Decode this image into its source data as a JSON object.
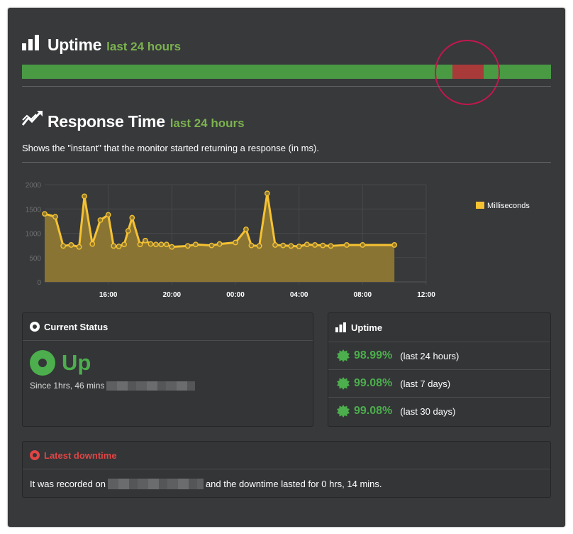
{
  "uptime_section": {
    "title": "Uptime",
    "period": "last 24 hours"
  },
  "response_section": {
    "title": "Response Time",
    "period": "last 24 hours",
    "description": "Shows the \"instant\" that the monitor started returning a response (in ms)."
  },
  "chart_data": {
    "type": "area",
    "series": [
      {
        "name": "Milliseconds",
        "color": "#f5c232",
        "x": [
          "12:00",
          "12:40",
          "13:10",
          "13:40",
          "14:10",
          "14:30",
          "15:00",
          "15:30",
          "16:00",
          "16:20",
          "16:40",
          "17:00",
          "17:15",
          "17:30",
          "18:00",
          "18:20",
          "18:40",
          "19:00",
          "19:20",
          "19:40",
          "20:00",
          "21:00",
          "21:30",
          "22:30",
          "23:00",
          "24:00",
          "24:40",
          "25:00",
          "25:30",
          "26:00",
          "26:30",
          "27:00",
          "27:30",
          "28:00",
          "28:30",
          "29:00",
          "29:30",
          "30:00",
          "31:00",
          "32:00",
          "34:00"
        ],
        "values": [
          1400,
          1340,
          740,
          760,
          720,
          1760,
          780,
          1270,
          1380,
          740,
          730,
          770,
          1050,
          1320,
          770,
          850,
          780,
          770,
          770,
          770,
          720,
          740,
          770,
          750,
          780,
          810,
          1080,
          750,
          740,
          1820,
          760,
          750,
          740,
          730,
          770,
          760,
          750,
          740,
          760,
          760,
          760
        ]
      }
    ],
    "y_ticks": [
      "0",
      "500",
      "1000",
      "1500",
      "2000"
    ],
    "x_ticks": [
      "16:00",
      "20:00",
      "00:00",
      "04:00",
      "08:00",
      "12:00"
    ],
    "ylim": [
      0,
      2000
    ],
    "legend": "right"
  },
  "current_status": {
    "title": "Current Status",
    "status": "Up",
    "since": "Since 1hrs, 46 mins"
  },
  "uptime_panel": {
    "title": "Uptime",
    "rows": [
      {
        "pct": "98.99%",
        "period": "(last 24 hours)"
      },
      {
        "pct": "99.08%",
        "period": "(last 7 days)"
      },
      {
        "pct": "99.08%",
        "period": "(last 30 days)"
      }
    ]
  },
  "latest_downtime": {
    "title": "Latest downtime",
    "text_before": "It was recorded on",
    "text_after": "and the downtime lasted for 0 hrs, 14 mins."
  }
}
